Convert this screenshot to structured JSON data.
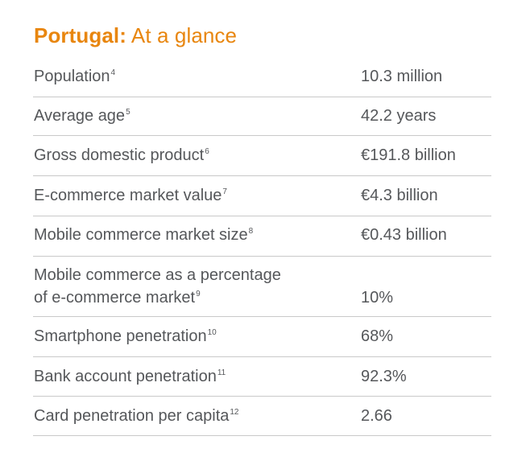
{
  "title": {
    "bold": "Portugal:",
    "light": "At a glance"
  },
  "rows": [
    {
      "label": "Population",
      "note": "4",
      "value": "10.3 million"
    },
    {
      "label": "Average age",
      "note": "5",
      "value": "42.2 years"
    },
    {
      "label": "Gross domestic product",
      "note": "6",
      "value": "€191.8 billion"
    },
    {
      "label": "E-commerce market value",
      "note": "7",
      "value": "€4.3 billion"
    },
    {
      "label": "Mobile commerce market size",
      "note": "8",
      "value": "€0.43 billion"
    },
    {
      "label_line1": "Mobile commerce as a percentage",
      "label_line2": "of e-commerce market",
      "note": "9",
      "value": "10%"
    },
    {
      "label": "Smartphone penetration",
      "note": "10",
      "value": "68%"
    },
    {
      "label": "Bank account penetration",
      "note": "11",
      "value": "92.3%"
    },
    {
      "label": "Card penetration per capita",
      "note": "12",
      "value": "2.66"
    }
  ]
}
